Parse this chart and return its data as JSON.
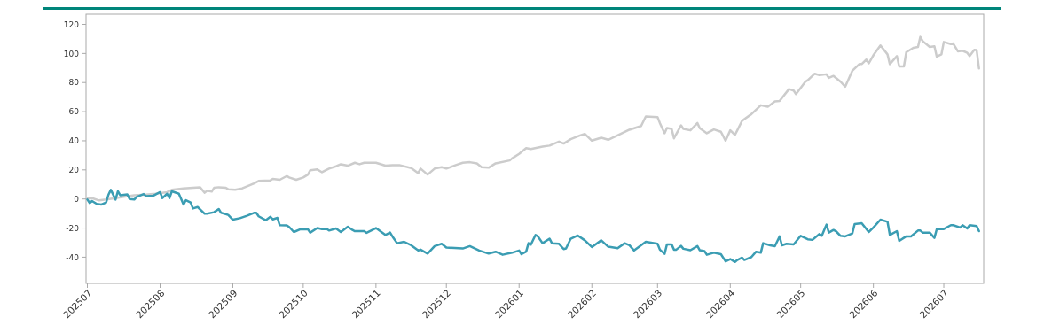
{
  "chart_data": {
    "type": "line",
    "xlim": [
      "2025-07-01",
      "2026-07-18"
    ],
    "xticks": [
      {
        "value": "2025-07-01",
        "label": "202507"
      },
      {
        "value": "2025-08-01",
        "label": "202508"
      },
      {
        "value": "2025-09-01",
        "label": "202509"
      },
      {
        "value": "2025-10-01",
        "label": "202510"
      },
      {
        "value": "2025-11-01",
        "label": "202511"
      },
      {
        "value": "2025-12-01",
        "label": "202512"
      },
      {
        "value": "2026-01-01",
        "label": "202601"
      },
      {
        "value": "2026-02-01",
        "label": "202602"
      },
      {
        "value": "2026-03-01",
        "label": "202603"
      },
      {
        "value": "2026-04-01",
        "label": "202604"
      },
      {
        "value": "2026-05-01",
        "label": "202605"
      },
      {
        "value": "2026-06-01",
        "label": "202606"
      },
      {
        "value": "2026-07-01",
        "label": "202607"
      }
    ],
    "ylim": [
      -58,
      127
    ],
    "yticks": [
      -40,
      -20,
      0,
      20,
      40,
      60,
      80,
      100,
      120
    ],
    "grid": false,
    "marker": "none",
    "line_style": "solid",
    "series": [
      {
        "color": "#cccccc",
        "x": [
          "2025-07-01",
          "2025-07-03",
          "2025-07-06",
          "2025-07-09",
          "2025-07-13",
          "2025-07-17",
          "2025-07-21",
          "2025-07-26",
          "2025-07-30",
          "2025-08-04",
          "2025-08-06",
          "2025-08-11",
          "2025-08-15",
          "2025-08-18",
          "2025-08-20",
          "2025-08-21",
          "2025-08-23",
          "2025-08-24",
          "2025-08-26",
          "2025-08-29",
          "2025-08-30",
          "2025-09-02",
          "2025-09-05",
          "2025-09-08",
          "2025-09-10",
          "2025-09-12",
          "2025-09-17",
          "2025-09-18",
          "2025-09-21",
          "2025-09-24",
          "2025-09-25",
          "2025-09-28",
          "2025-10-01",
          "2025-10-03",
          "2025-10-04",
          "2025-10-07",
          "2025-10-09",
          "2025-10-12",
          "2025-10-15",
          "2025-10-17",
          "2025-10-20",
          "2025-10-23",
          "2025-10-25",
          "2025-10-27",
          "2025-11-01",
          "2025-11-05",
          "2025-11-08",
          "2025-11-11",
          "2025-11-16",
          "2025-11-19",
          "2025-11-20",
          "2025-11-23",
          "2025-11-26",
          "2025-11-29",
          "2025-12-01",
          "2025-12-05",
          "2025-12-08",
          "2025-12-11",
          "2025-12-14",
          "2025-12-16",
          "2025-12-19",
          "2025-12-22",
          "2025-12-28",
          "2025-12-29",
          "2026-01-01",
          "2026-01-04",
          "2026-01-06",
          "2026-01-11",
          "2026-01-14",
          "2026-01-18",
          "2026-01-20",
          "2026-01-23",
          "2026-01-27",
          "2026-01-29",
          "2026-02-01",
          "2026-02-05",
          "2026-02-08",
          "2026-02-17",
          "2026-02-22",
          "2026-02-24",
          "2026-03-01",
          "2026-03-02",
          "2026-03-04",
          "2026-03-05",
          "2026-03-07",
          "2026-03-08",
          "2026-03-11",
          "2026-03-12",
          "2026-03-15",
          "2026-03-18",
          "2026-03-19",
          "2026-03-22",
          "2026-03-25",
          "2026-03-28",
          "2026-03-30",
          "2026-04-01",
          "2026-04-03",
          "2026-04-04",
          "2026-04-06",
          "2026-04-07",
          "2026-04-10",
          "2026-04-14",
          "2026-04-17",
          "2026-04-20",
          "2026-04-22",
          "2026-04-26",
          "2026-04-28",
          "2026-04-29",
          "2026-05-03",
          "2026-05-04",
          "2026-05-07",
          "2026-05-09",
          "2026-05-12",
          "2026-05-13",
          "2026-05-15",
          "2026-05-18",
          "2026-05-20",
          "2026-05-23",
          "2026-05-26",
          "2026-05-27",
          "2026-05-29",
          "2026-05-30",
          "2026-06-01",
          "2026-06-04",
          "2026-06-07",
          "2026-06-08",
          "2026-06-11",
          "2026-06-12",
          "2026-06-14",
          "2026-06-15",
          "2026-06-18",
          "2026-06-20",
          "2026-06-21",
          "2026-06-22",
          "2026-06-25",
          "2026-06-27",
          "2026-06-28",
          "2026-06-30",
          "2026-07-01",
          "2026-07-04",
          "2026-07-05",
          "2026-07-07",
          "2026-07-09",
          "2026-07-11",
          "2026-07-12",
          "2026-07-14",
          "2026-07-15",
          "2026-07-16"
        ],
        "values": [
          0.2,
          0.6,
          -1.0,
          -0.4,
          0.6,
          1.6,
          2.6,
          3.0,
          3.6,
          4.7,
          6.3,
          7.3,
          7.7,
          8.1,
          4.3,
          5.7,
          5.1,
          7.7,
          8.1,
          7.7,
          6.7,
          6.3,
          7.3,
          9.3,
          10.7,
          12.4,
          12.8,
          13.8,
          13.2,
          15.8,
          14.8,
          13.2,
          14.8,
          16.8,
          19.8,
          20.3,
          18.4,
          20.9,
          22.5,
          23.9,
          22.9,
          24.9,
          23.9,
          24.9,
          24.9,
          22.9,
          23.3,
          23.3,
          21.3,
          17.8,
          20.9,
          16.8,
          20.9,
          21.9,
          20.9,
          23.3,
          24.9,
          25.3,
          24.5,
          21.9,
          21.5,
          24.5,
          26.5,
          27.9,
          31.0,
          35.0,
          34.4,
          36.0,
          36.7,
          39.5,
          38.1,
          41.1,
          43.7,
          44.8,
          40.1,
          42.1,
          40.7,
          47.6,
          50.2,
          56.7,
          56.3,
          52.2,
          45.2,
          48.8,
          48.2,
          41.7,
          50.6,
          48.2,
          47.2,
          52.2,
          48.6,
          45.2,
          47.8,
          46.2,
          40.1,
          47.2,
          44.1,
          47.2,
          53.7,
          54.9,
          58.3,
          64.4,
          63.4,
          67.0,
          67.4,
          75.5,
          74.5,
          72.1,
          80.6,
          81.6,
          86.1,
          85.1,
          85.7,
          83.2,
          84.6,
          80.6,
          77.2,
          88.1,
          92.7,
          92.7,
          95.8,
          93.2,
          98.8,
          105.5,
          99.4,
          92.7,
          98.2,
          91.1,
          91.1,
          100.8,
          103.9,
          104.5,
          111.4,
          108.5,
          104.5,
          104.9,
          97.8,
          99.4,
          107.9,
          106.5,
          106.9,
          101.5,
          101.9,
          100.4,
          98.2,
          102.5,
          102.3,
          89.7
        ]
      },
      {
        "color": "#3b9db3",
        "x": [
          "2025-07-01",
          "2025-07-02",
          "2025-07-03",
          "2025-07-05",
          "2025-07-07",
          "2025-07-09",
          "2025-07-10",
          "2025-07-11",
          "2025-07-13",
          "2025-07-14",
          "2025-07-15",
          "2025-07-18",
          "2025-07-19",
          "2025-07-21",
          "2025-07-22",
          "2025-07-25",
          "2025-07-26",
          "2025-07-29",
          "2025-08-01",
          "2025-08-02",
          "2025-08-04",
          "2025-08-05",
          "2025-08-06",
          "2025-08-09",
          "2025-08-11",
          "2025-08-12",
          "2025-08-14",
          "2025-08-15",
          "2025-08-17",
          "2025-08-20",
          "2025-08-21",
          "2025-08-24",
          "2025-08-26",
          "2025-08-27",
          "2025-08-30",
          "2025-09-01",
          "2025-09-04",
          "2025-09-07",
          "2025-09-10",
          "2025-09-11",
          "2025-09-12",
          "2025-09-15",
          "2025-09-17",
          "2025-09-18",
          "2025-09-20",
          "2025-09-21",
          "2025-09-24",
          "2025-09-25",
          "2025-09-27",
          "2025-09-30",
          "2025-10-01",
          "2025-10-03",
          "2025-10-04",
          "2025-10-07",
          "2025-10-09",
          "2025-10-11",
          "2025-10-12",
          "2025-10-15",
          "2025-10-17",
          "2025-10-20",
          "2025-10-22",
          "2025-10-23",
          "2025-10-25",
          "2025-10-27",
          "2025-10-28",
          "2025-11-01",
          "2025-11-05",
          "2025-11-07",
          "2025-11-08",
          "2025-11-10",
          "2025-11-13",
          "2025-11-16",
          "2025-11-19",
          "2025-11-20",
          "2025-11-23",
          "2025-11-26",
          "2025-11-29",
          "2025-12-01",
          "2025-12-08",
          "2025-12-11",
          "2025-12-15",
          "2025-12-19",
          "2025-12-22",
          "2025-12-25",
          "2025-12-29",
          "2026-01-01",
          "2026-01-02",
          "2026-01-04",
          "2026-01-05",
          "2026-01-06",
          "2026-01-08",
          "2026-01-09",
          "2026-01-11",
          "2026-01-14",
          "2026-01-15",
          "2026-01-18",
          "2026-01-20",
          "2026-01-21",
          "2026-01-23",
          "2026-01-26",
          "2026-01-29",
          "2026-02-01",
          "2026-02-05",
          "2026-02-08",
          "2026-02-12",
          "2026-02-15",
          "2026-02-17",
          "2026-02-19",
          "2026-02-24",
          "2026-03-01",
          "2026-03-02",
          "2026-03-04",
          "2026-03-05",
          "2026-03-07",
          "2026-03-08",
          "2026-03-09",
          "2026-03-11",
          "2026-03-12",
          "2026-03-15",
          "2026-03-18",
          "2026-03-19",
          "2026-03-21",
          "2026-03-22",
          "2026-03-25",
          "2026-03-28",
          "2026-03-30",
          "2026-04-01",
          "2026-04-03",
          "2026-04-04",
          "2026-04-06",
          "2026-04-07",
          "2026-04-10",
          "2026-04-12",
          "2026-04-14",
          "2026-04-15",
          "2026-04-18",
          "2026-04-20",
          "2026-04-22",
          "2026-04-23",
          "2026-04-25",
          "2026-04-28",
          "2026-05-01",
          "2026-05-04",
          "2026-05-06",
          "2026-05-09",
          "2026-05-10",
          "2026-05-12",
          "2026-05-13",
          "2026-05-15",
          "2026-05-16",
          "2026-05-18",
          "2026-05-20",
          "2026-05-23",
          "2026-05-24",
          "2026-05-27",
          "2026-05-30",
          "2026-06-01",
          "2026-06-04",
          "2026-06-07",
          "2026-06-08",
          "2026-06-11",
          "2026-06-12",
          "2026-06-15",
          "2026-06-17",
          "2026-06-20",
          "2026-06-21",
          "2026-06-22",
          "2026-06-25",
          "2026-06-27",
          "2026-06-28",
          "2026-07-01",
          "2026-07-04",
          "2026-07-05",
          "2026-07-08",
          "2026-07-09",
          "2026-07-11",
          "2026-07-12",
          "2026-07-15",
          "2026-07-16"
        ],
        "values": [
          -0.4,
          -2.8,
          -1.4,
          -3.4,
          -3.8,
          -2.4,
          3.0,
          6.3,
          -0.4,
          5.3,
          2.6,
          3.2,
          0,
          -0.4,
          1.4,
          3.4,
          2.0,
          2.2,
          4.7,
          0.6,
          3.6,
          0.6,
          5.3,
          3.6,
          -3.8,
          -0.8,
          -2.4,
          -6.5,
          -5.5,
          -10.1,
          -10.1,
          -9.1,
          -6.9,
          -9.5,
          -10.9,
          -14.2,
          -13.2,
          -11.5,
          -9.5,
          -9.5,
          -11.9,
          -14.6,
          -12.2,
          -14.0,
          -13.0,
          -18.0,
          -18.2,
          -19.2,
          -22.7,
          -20.7,
          -20.9,
          -20.9,
          -23.1,
          -20.0,
          -20.7,
          -20.5,
          -21.7,
          -20.3,
          -22.7,
          -19.0,
          -21.3,
          -22.1,
          -22.1,
          -22.1,
          -23.3,
          -20.0,
          -24.7,
          -23.1,
          -25.7,
          -30.4,
          -29.4,
          -31.8,
          -35.4,
          -34.8,
          -37.5,
          -32.4,
          -30.8,
          -33.4,
          -34.0,
          -32.4,
          -35.4,
          -37.5,
          -36.2,
          -38.3,
          -36.9,
          -35.4,
          -37.9,
          -36.2,
          -30.4,
          -31.4,
          -24.7,
          -25.7,
          -30.4,
          -27.3,
          -30.4,
          -30.8,
          -34.4,
          -34.0,
          -27.3,
          -25.1,
          -28.4,
          -33.0,
          -28.4,
          -32.8,
          -33.8,
          -30.4,
          -31.8,
          -35.4,
          -29.4,
          -30.8,
          -34.8,
          -37.7,
          -31.2,
          -31.2,
          -34.8,
          -34.8,
          -32.2,
          -34.2,
          -35.2,
          -32.4,
          -35.2,
          -35.8,
          -38.3,
          -36.9,
          -37.9,
          -42.9,
          -41.3,
          -43.3,
          -41.9,
          -40.3,
          -41.9,
          -39.9,
          -36.2,
          -36.9,
          -30.4,
          -31.8,
          -32.4,
          -25.7,
          -31.8,
          -30.8,
          -31.2,
          -25.3,
          -27.7,
          -28.1,
          -24.1,
          -25.3,
          -17.6,
          -23.1,
          -21.3,
          -22.1,
          -25.3,
          -25.7,
          -23.7,
          -17.2,
          -16.6,
          -22.7,
          -19.6,
          -14.2,
          -15.6,
          -24.7,
          -22.1,
          -28.8,
          -25.7,
          -25.7,
          -21.7,
          -21.7,
          -23.1,
          -23.1,
          -26.7,
          -20.7,
          -20.7,
          -18.0,
          -18.0,
          -19.6,
          -18.0,
          -20.3,
          -18.0,
          -18.6,
          -22.1
        ]
      }
    ]
  }
}
